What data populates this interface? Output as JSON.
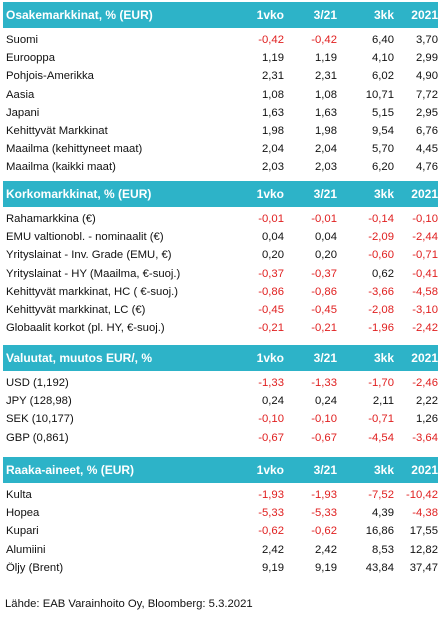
{
  "headers": {
    "c1": "1vko",
    "c2": "3/21",
    "c3": "3kk",
    "c4": "2021"
  },
  "colors": {
    "header_bg": "#2db3c8",
    "negative": "#e02020"
  },
  "sections": [
    {
      "title": "Osakemarkkinat, % (EUR)",
      "rows": [
        {
          "name": "Suomi",
          "v": [
            "-0,42",
            "-0,42",
            "6,40",
            "3,70"
          ]
        },
        {
          "name": "Eurooppa",
          "v": [
            "1,19",
            "1,19",
            "4,10",
            "2,99"
          ]
        },
        {
          "name": "Pohjois-Amerikka",
          "v": [
            "2,31",
            "2,31",
            "6,02",
            "4,90"
          ]
        },
        {
          "name": "Aasia",
          "v": [
            "1,08",
            "1,08",
            "10,71",
            "7,72"
          ]
        },
        {
          "name": "Japani",
          "v": [
            "1,63",
            "1,63",
            "5,15",
            "2,95"
          ]
        },
        {
          "name": "Kehittyvät Markkinat",
          "v": [
            "1,98",
            "1,98",
            "9,54",
            "6,76"
          ]
        },
        {
          "name": "Maailma (kehittyneet maat)",
          "v": [
            "2,04",
            "2,04",
            "5,70",
            "4,45"
          ]
        },
        {
          "name": "Maailma (kaikki maat)",
          "v": [
            "2,03",
            "2,03",
            "6,20",
            "4,76"
          ]
        }
      ]
    },
    {
      "title": "Korkomarkkinat, % (EUR)",
      "rows": [
        {
          "name": "Rahamarkkina (€)",
          "v": [
            "-0,01",
            "-0,01",
            "-0,14",
            "-0,10"
          ]
        },
        {
          "name": "EMU valtionobl. - nominaalit (€)",
          "v": [
            "0,04",
            "0,04",
            "-2,09",
            "-2,44"
          ]
        },
        {
          "name": "Yrityslainat - Inv. Grade (EMU, €)",
          "v": [
            "0,20",
            "0,20",
            "-0,60",
            "-0,71"
          ]
        },
        {
          "name": "Yrityslainat - HY (Maailma, €-suoj.)",
          "v": [
            "-0,37",
            "-0,37",
            "0,62",
            "-0,41"
          ]
        },
        {
          "name": "Kehittyvät markkinat, HC ( €-suoj.)",
          "v": [
            "-0,86",
            "-0,86",
            "-3,66",
            "-4,58"
          ]
        },
        {
          "name": "Kehittyvät markkinat, LC (€)",
          "v": [
            "-0,45",
            "-0,45",
            "-2,08",
            "-3,10"
          ]
        },
        {
          "name": "Globaalit korkot (pl. HY, €-suoj.)",
          "v": [
            "-0,21",
            "-0,21",
            "-1,96",
            "-2,42"
          ]
        }
      ]
    },
    {
      "title": "Valuutat, muutos EUR/,  %",
      "rows": [
        {
          "name": "USD (1,192)",
          "v": [
            "-1,33",
            "-1,33",
            "-1,70",
            "-2,46"
          ]
        },
        {
          "name": "JPY (128,98)",
          "v": [
            "0,24",
            "0,24",
            "2,11",
            "2,22"
          ]
        },
        {
          "name": "SEK (10,177)",
          "v": [
            "-0,10",
            "-0,10",
            "-0,71",
            "1,26"
          ]
        },
        {
          "name": "GBP (0,861)",
          "v": [
            "-0,67",
            "-0,67",
            "-4,54",
            "-3,64"
          ]
        }
      ]
    },
    {
      "title": "Raaka-aineet, % (EUR)",
      "rows": [
        {
          "name": "Kulta",
          "v": [
            "-1,93",
            "-1,93",
            "-7,52",
            "-10,42"
          ]
        },
        {
          "name": "Hopea",
          "v": [
            "-5,33",
            "-5,33",
            "4,39",
            "-4,38"
          ]
        },
        {
          "name": "Kupari",
          "v": [
            "-0,62",
            "-0,62",
            "16,86",
            "17,55"
          ]
        },
        {
          "name": "Alumiini",
          "v": [
            "2,42",
            "2,42",
            "8,53",
            "12,82"
          ]
        },
        {
          "name": "Öljy (Brent)",
          "v": [
            "9,19",
            "9,19",
            "43,84",
            "37,47"
          ]
        }
      ]
    }
  ],
  "source": "Lähde: EAB Varainhoito Oy, Bloomberg: 5.3.2021"
}
